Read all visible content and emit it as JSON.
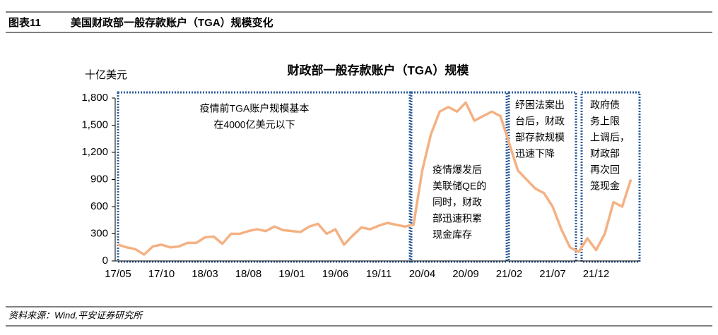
{
  "header": {
    "figure": "图表11",
    "title": "美国财政部一般存款账户（TGA）规模变化"
  },
  "chart_data": {
    "type": "line",
    "title": "财政部一般存款账户（TGA）规模",
    "y_label": "十亿美元",
    "categories": [
      "17/05",
      null,
      null,
      null,
      null,
      "17/10",
      null,
      null,
      null,
      null,
      "18/03",
      null,
      null,
      null,
      null,
      "18/08",
      null,
      null,
      null,
      null,
      "19/01",
      null,
      null,
      null,
      null,
      "19/06",
      null,
      null,
      null,
      null,
      "19/11",
      null,
      null,
      null,
      null,
      "20/04",
      null,
      null,
      null,
      null,
      "20/09",
      null,
      null,
      null,
      null,
      "21/02",
      null,
      null,
      null,
      null,
      "21/07",
      null,
      null,
      null,
      null,
      "21/12",
      null,
      null,
      null,
      null
    ],
    "series": [
      {
        "name": "TGA",
        "color": "#f4b183",
        "values": [
          180,
          150,
          130,
          70,
          160,
          180,
          150,
          160,
          200,
          200,
          260,
          270,
          190,
          300,
          300,
          330,
          350,
          330,
          380,
          340,
          330,
          320,
          380,
          410,
          300,
          350,
          180,
          280,
          370,
          350,
          390,
          420,
          400,
          380,
          400,
          1000,
          1400,
          1650,
          1700,
          1650,
          1750,
          1550,
          1600,
          1650,
          1600,
          1300,
          1000,
          900,
          800,
          750,
          600,
          350,
          150,
          100,
          250,
          120,
          300,
          650,
          600,
          900
        ]
      }
    ],
    "ylim": [
      0,
      1800
    ],
    "yticks": [
      0,
      300,
      600,
      900,
      {
        "value": 1200,
        "label": "1,200"
      },
      {
        "value": 1500,
        "label": "1,500"
      },
      {
        "value": 1800,
        "label": "1,800"
      }
    ],
    "annotations": [
      [
        "疫情前TGA账户规模基本",
        "在4000亿美元以下"
      ],
      [
        "疫情爆发后",
        "美联储QE的",
        "同时，财政",
        "部迅速积累",
        "现金库存"
      ],
      [
        "纾困法案出",
        "台后，财政",
        "部存款规模",
        "迅速下降"
      ],
      [
        "政府债",
        "务上限",
        "上调后，",
        "财政部",
        "再次回",
        "笼现金"
      ]
    ]
  },
  "source": "资料来源：Wind,平安证券研究所"
}
